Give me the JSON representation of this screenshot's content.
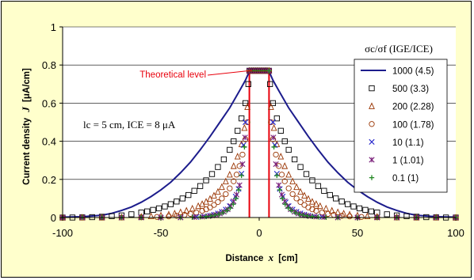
{
  "chart_data": {
    "type": "scatter",
    "xlabel": "Distance",
    "xlabel_var": "x",
    "xlabel_unit": "[cm]",
    "ylabel": "Current density",
    "ylabel_var": "J",
    "ylabel_unit": "[μA/cm]",
    "xlim": [
      -100,
      100
    ],
    "ylim": [
      0,
      1
    ],
    "x_ticks": [
      -100,
      -50,
      0,
      50,
      100
    ],
    "y_ticks": [
      0,
      0.2,
      0.4,
      0.6,
      0.8,
      1
    ],
    "y_tick_labels": [
      "0",
      "0.2",
      "0.4",
      "0.6",
      "0.8",
      "1"
    ],
    "grid": "horizontal",
    "legend_title": "σc/σf (IGE/ICE)",
    "legend_position": "right",
    "annotation_theoretical": "Theoretical level",
    "annotation_params": "lc = 5 cm,  ICE = 8 μA",
    "theoretical_level": {
      "y": 0.77,
      "x_range": [
        -5,
        5
      ],
      "color": "#e8000c"
    },
    "series": [
      {
        "name": "1000 (4.5)",
        "marker": "line",
        "color": "#1c1c8c",
        "x": [
          -100,
          -90,
          -80,
          -75,
          -70,
          -65,
          -60,
          -55,
          -50,
          -45,
          -40,
          -35,
          -30,
          -25,
          -20,
          -15,
          -10,
          -7,
          -5.5,
          -4,
          0,
          4,
          5.5,
          7,
          10,
          15,
          20,
          25,
          30,
          35,
          40,
          45,
          50,
          55,
          60,
          65,
          70,
          75,
          80,
          90,
          100
        ],
        "y": [
          0.002,
          0.004,
          0.012,
          0.022,
          0.037,
          0.055,
          0.08,
          0.11,
          0.145,
          0.185,
          0.235,
          0.29,
          0.355,
          0.425,
          0.5,
          0.575,
          0.665,
          0.72,
          0.755,
          0.76,
          0.76,
          0.76,
          0.755,
          0.72,
          0.665,
          0.575,
          0.5,
          0.425,
          0.355,
          0.29,
          0.235,
          0.185,
          0.145,
          0.11,
          0.08,
          0.055,
          0.037,
          0.022,
          0.012,
          0.004,
          0.002
        ]
      },
      {
        "name": "500 (3.3)",
        "marker": "square",
        "color": "#000000",
        "x": [
          -100,
          -95,
          -90,
          -85,
          -80,
          -75,
          -70,
          -65,
          -60,
          -57,
          -54,
          -51,
          -48,
          -45,
          -42,
          -39,
          -36,
          -33,
          -30,
          -27,
          -24,
          -21,
          -18,
          -15,
          -13,
          -11,
          -9,
          -7,
          -5.5,
          5.5,
          7,
          9,
          11,
          13,
          15,
          18,
          21,
          24,
          27,
          30,
          33,
          36,
          39,
          42,
          45,
          48,
          51,
          54,
          57,
          60,
          65,
          70,
          75,
          80,
          85,
          90,
          95,
          100
        ],
        "y": [
          0,
          0,
          0.001,
          0.002,
          0.004,
          0.007,
          0.011,
          0.017,
          0.026,
          0.032,
          0.04,
          0.048,
          0.058,
          0.07,
          0.084,
          0.1,
          0.118,
          0.14,
          0.165,
          0.195,
          0.228,
          0.265,
          0.305,
          0.355,
          0.4,
          0.455,
          0.52,
          0.6,
          0.7,
          0.7,
          0.6,
          0.52,
          0.455,
          0.4,
          0.355,
          0.305,
          0.265,
          0.228,
          0.195,
          0.165,
          0.14,
          0.118,
          0.1,
          0.084,
          0.07,
          0.058,
          0.048,
          0.04,
          0.032,
          0.026,
          0.017,
          0.011,
          0.007,
          0.004,
          0.002,
          0.001,
          0,
          0
        ]
      },
      {
        "name": "200 (2.28)",
        "marker": "triangle",
        "color": "#993300",
        "x": [
          -100,
          -90,
          -80,
          -70,
          -60,
          -55,
          -50,
          -46,
          -43,
          -40,
          -37,
          -34,
          -31,
          -29,
          -27,
          -25,
          -23,
          -21,
          -19,
          -17,
          -15,
          -13,
          -11,
          -9,
          -7.5,
          -6,
          6,
          7.5,
          9,
          11,
          13,
          15,
          17,
          19,
          21,
          23,
          25,
          27,
          29,
          31,
          34,
          37,
          40,
          43,
          46,
          50,
          55,
          60,
          70,
          80,
          90,
          100
        ],
        "y": [
          0,
          0,
          0,
          0.001,
          0.004,
          0.007,
          0.011,
          0.016,
          0.021,
          0.028,
          0.036,
          0.047,
          0.06,
          0.071,
          0.083,
          0.098,
          0.115,
          0.135,
          0.16,
          0.19,
          0.225,
          0.27,
          0.32,
          0.385,
          0.47,
          0.58,
          0.58,
          0.47,
          0.385,
          0.32,
          0.27,
          0.225,
          0.19,
          0.16,
          0.135,
          0.115,
          0.098,
          0.083,
          0.071,
          0.06,
          0.047,
          0.036,
          0.028,
          0.021,
          0.016,
          0.011,
          0.007,
          0.004,
          0.001,
          0,
          0,
          0
        ]
      },
      {
        "name": "100 (1.78)",
        "marker": "circle",
        "color": "#993300",
        "x": [
          -100,
          -90,
          -80,
          -70,
          -60,
          -52,
          -46,
          -42,
          -38,
          -35,
          -32,
          -29,
          -27,
          -25,
          -23,
          -21,
          -19,
          -17,
          -15,
          -13,
          -11.5,
          -10,
          -8.5,
          -7,
          -6,
          6,
          7,
          8.5,
          10,
          11.5,
          13,
          15,
          17,
          19,
          21,
          23,
          25,
          27,
          29,
          32,
          35,
          38,
          42,
          46,
          52,
          60,
          70,
          80,
          90,
          100
        ],
        "y": [
          0,
          0,
          0,
          0,
          0.001,
          0.003,
          0.006,
          0.009,
          0.014,
          0.019,
          0.026,
          0.035,
          0.043,
          0.053,
          0.066,
          0.081,
          0.1,
          0.123,
          0.153,
          0.19,
          0.225,
          0.27,
          0.33,
          0.41,
          0.5,
          0.5,
          0.41,
          0.33,
          0.27,
          0.225,
          0.19,
          0.153,
          0.123,
          0.1,
          0.081,
          0.066,
          0.053,
          0.043,
          0.035,
          0.026,
          0.019,
          0.014,
          0.009,
          0.006,
          0.003,
          0.001,
          0,
          0,
          0,
          0
        ]
      },
      {
        "name": "10 (1.1)",
        "marker": "x",
        "color": "#2222cc",
        "x": [
          -100,
          -90,
          -80,
          -70,
          -60,
          -50,
          -40,
          -32,
          -28,
          -25,
          -23,
          -21,
          -19,
          -17,
          -15,
          -13.5,
          -12,
          -10.5,
          -9,
          -8,
          -7,
          7,
          8,
          9,
          10.5,
          12,
          13.5,
          15,
          17,
          19,
          21,
          23,
          25,
          28,
          32,
          40,
          50,
          60,
          70,
          80,
          90,
          100
        ],
        "y": [
          0,
          0,
          0,
          0,
          0,
          0,
          0.001,
          0.003,
          0.006,
          0.01,
          0.015,
          0.022,
          0.03,
          0.042,
          0.06,
          0.08,
          0.11,
          0.15,
          0.23,
          0.38,
          0.5,
          0.5,
          0.38,
          0.23,
          0.15,
          0.11,
          0.08,
          0.06,
          0.042,
          0.03,
          0.022,
          0.015,
          0.01,
          0.006,
          0.003,
          0.001,
          0,
          0,
          0,
          0,
          0,
          0
        ]
      },
      {
        "name": "1 (1.01)",
        "marker": "asterisk",
        "color": "#7a1f7a",
        "x": [
          -100,
          -90,
          -80,
          -70,
          -60,
          -50,
          -40,
          -33,
          -29,
          -26,
          -24,
          -22,
          -20,
          -18,
          -16,
          -14.5,
          -13,
          -11.5,
          -10,
          -8.5,
          -7.2,
          7.2,
          8.5,
          10,
          11.5,
          13,
          14.5,
          16,
          18,
          20,
          22,
          24,
          26,
          29,
          33,
          40,
          50,
          60,
          70,
          80,
          90,
          100
        ],
        "y": [
          0,
          0,
          0,
          0,
          0,
          0,
          0,
          0.002,
          0.004,
          0.007,
          0.01,
          0.015,
          0.021,
          0.03,
          0.043,
          0.06,
          0.085,
          0.12,
          0.17,
          0.28,
          0.42,
          0.42,
          0.28,
          0.17,
          0.12,
          0.085,
          0.06,
          0.043,
          0.03,
          0.021,
          0.015,
          0.01,
          0.007,
          0.004,
          0.002,
          0,
          0,
          0,
          0,
          0,
          0,
          0
        ]
      },
      {
        "name": "0.1 (1)",
        "marker": "plus",
        "color": "#228822",
        "x": [
          -100,
          -90,
          -80,
          -70,
          -60,
          -50,
          -40,
          -34,
          -30,
          -27,
          -24.5,
          -22.5,
          -20.5,
          -18.5,
          -16.5,
          -14.8,
          -13.2,
          -11.8,
          -10.4,
          -9,
          -7.5,
          7.5,
          9,
          10.4,
          11.8,
          13.2,
          14.8,
          16.5,
          18.5,
          20.5,
          22.5,
          24.5,
          27,
          30,
          34,
          40,
          50,
          60,
          70,
          80,
          90,
          100
        ],
        "y": [
          0,
          0,
          0,
          0,
          0,
          0,
          0,
          0.001,
          0.003,
          0.005,
          0.008,
          0.012,
          0.017,
          0.025,
          0.036,
          0.05,
          0.07,
          0.1,
          0.145,
          0.22,
          0.37,
          0.37,
          0.22,
          0.145,
          0.1,
          0.07,
          0.05,
          0.036,
          0.025,
          0.017,
          0.012,
          0.008,
          0.005,
          0.003,
          0.001,
          0,
          0,
          0,
          0,
          0,
          0,
          0
        ]
      }
    ],
    "plateau_points": {
      "x_range": [
        -5,
        5
      ],
      "y": 0.77
    }
  }
}
